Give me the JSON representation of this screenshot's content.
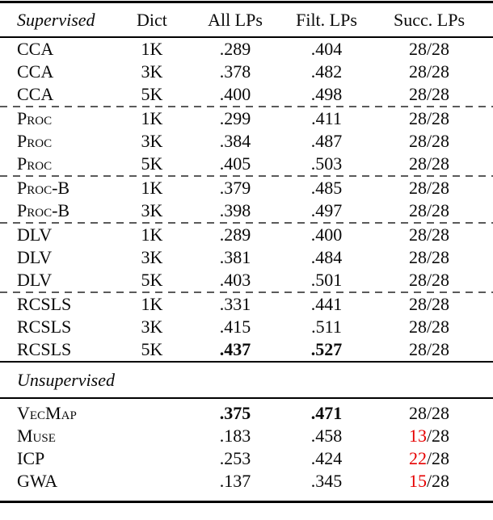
{
  "colors": {
    "rule_black": "#000000",
    "dash_gray": "#5a5a5a",
    "value_red": "#e60000",
    "text": "#0a0a0a",
    "background": "#ffffff"
  },
  "header": {
    "supervised": "Supervised",
    "dict": "Dict",
    "all_lps": "All LPs",
    "filt_lps": "Filt. LPs",
    "succ_lps": "Succ. LPs"
  },
  "supervised_rows": [
    {
      "method": "CCA",
      "smallcaps": false,
      "dict": "1K",
      "all": ".289",
      "filt": ".404",
      "succ_num": "28",
      "succ_rest": "/28",
      "all_bold": false,
      "filt_bold": false,
      "succ_red": false,
      "dash_above": false
    },
    {
      "method": "CCA",
      "smallcaps": false,
      "dict": "3K",
      "all": ".378",
      "filt": ".482",
      "succ_num": "28",
      "succ_rest": "/28",
      "all_bold": false,
      "filt_bold": false,
      "succ_red": false,
      "dash_above": false
    },
    {
      "method": "CCA",
      "smallcaps": false,
      "dict": "5K",
      "all": ".400",
      "filt": ".498",
      "succ_num": "28",
      "succ_rest": "/28",
      "all_bold": false,
      "filt_bold": false,
      "succ_red": false,
      "dash_above": false
    },
    {
      "method": "Proc",
      "smallcaps": true,
      "dict": "1K",
      "all": ".299",
      "filt": ".411",
      "succ_num": "28",
      "succ_rest": "/28",
      "all_bold": false,
      "filt_bold": false,
      "succ_red": false,
      "dash_above": true
    },
    {
      "method": "Proc",
      "smallcaps": true,
      "dict": "3K",
      "all": ".384",
      "filt": ".487",
      "succ_num": "28",
      "succ_rest": "/28",
      "all_bold": false,
      "filt_bold": false,
      "succ_red": false,
      "dash_above": false
    },
    {
      "method": "Proc",
      "smallcaps": true,
      "dict": "5K",
      "all": ".405",
      "filt": ".503",
      "succ_num": "28",
      "succ_rest": "/28",
      "all_bold": false,
      "filt_bold": false,
      "succ_red": false,
      "dash_above": false
    },
    {
      "method": "Proc-B",
      "smallcaps": true,
      "dict": "1K",
      "all": ".379",
      "filt": ".485",
      "succ_num": "28",
      "succ_rest": "/28",
      "all_bold": false,
      "filt_bold": false,
      "succ_red": false,
      "dash_above": true
    },
    {
      "method": "Proc-B",
      "smallcaps": true,
      "dict": "3K",
      "all": ".398",
      "filt": ".497",
      "succ_num": "28",
      "succ_rest": "/28",
      "all_bold": false,
      "filt_bold": false,
      "succ_red": false,
      "dash_above": false
    },
    {
      "method": "DLV",
      "smallcaps": false,
      "dict": "1K",
      "all": ".289",
      "filt": ".400",
      "succ_num": "28",
      "succ_rest": "/28",
      "all_bold": false,
      "filt_bold": false,
      "succ_red": false,
      "dash_above": true
    },
    {
      "method": "DLV",
      "smallcaps": false,
      "dict": "3K",
      "all": ".381",
      "filt": ".484",
      "succ_num": "28",
      "succ_rest": "/28",
      "all_bold": false,
      "filt_bold": false,
      "succ_red": false,
      "dash_above": false
    },
    {
      "method": "DLV",
      "smallcaps": false,
      "dict": "5K",
      "all": ".403",
      "filt": ".501",
      "succ_num": "28",
      "succ_rest": "/28",
      "all_bold": false,
      "filt_bold": false,
      "succ_red": false,
      "dash_above": false
    },
    {
      "method": "RCSLS",
      "smallcaps": false,
      "dict": "1K",
      "all": ".331",
      "filt": ".441",
      "succ_num": "28",
      "succ_rest": "/28",
      "all_bold": false,
      "filt_bold": false,
      "succ_red": false,
      "dash_above": true
    },
    {
      "method": "RCSLS",
      "smallcaps": false,
      "dict": "3K",
      "all": ".415",
      "filt": ".511",
      "succ_num": "28",
      "succ_rest": "/28",
      "all_bold": false,
      "filt_bold": false,
      "succ_red": false,
      "dash_above": false
    },
    {
      "method": "RCSLS",
      "smallcaps": false,
      "dict": "5K",
      "all": ".437",
      "filt": ".527",
      "succ_num": "28",
      "succ_rest": "/28",
      "all_bold": true,
      "filt_bold": true,
      "succ_red": false,
      "dash_above": false
    }
  ],
  "unsupervised": {
    "label": "Unsupervised"
  },
  "unsupervised_rows": [
    {
      "method": "VecMap",
      "smallcaps": true,
      "dict": "",
      "all": ".375",
      "filt": ".471",
      "succ_num": "28",
      "succ_rest": "/28",
      "all_bold": true,
      "filt_bold": true,
      "succ_red": false,
      "dash_above": false
    },
    {
      "method": "Muse",
      "smallcaps": true,
      "dict": "",
      "all": ".183",
      "filt": ".458",
      "succ_num": "13",
      "succ_rest": "/28",
      "all_bold": false,
      "filt_bold": false,
      "succ_red": true,
      "dash_above": false
    },
    {
      "method": "ICP",
      "smallcaps": false,
      "dict": "",
      "all": ".253",
      "filt": ".424",
      "succ_num": "22",
      "succ_rest": "/28",
      "all_bold": false,
      "filt_bold": false,
      "succ_red": true,
      "dash_above": false
    },
    {
      "method": "GWA",
      "smallcaps": false,
      "dict": "",
      "all": ".137",
      "filt": ".345",
      "succ_num": "15",
      "succ_rest": "/28",
      "all_bold": false,
      "filt_bold": false,
      "succ_red": true,
      "dash_above": false
    }
  ]
}
